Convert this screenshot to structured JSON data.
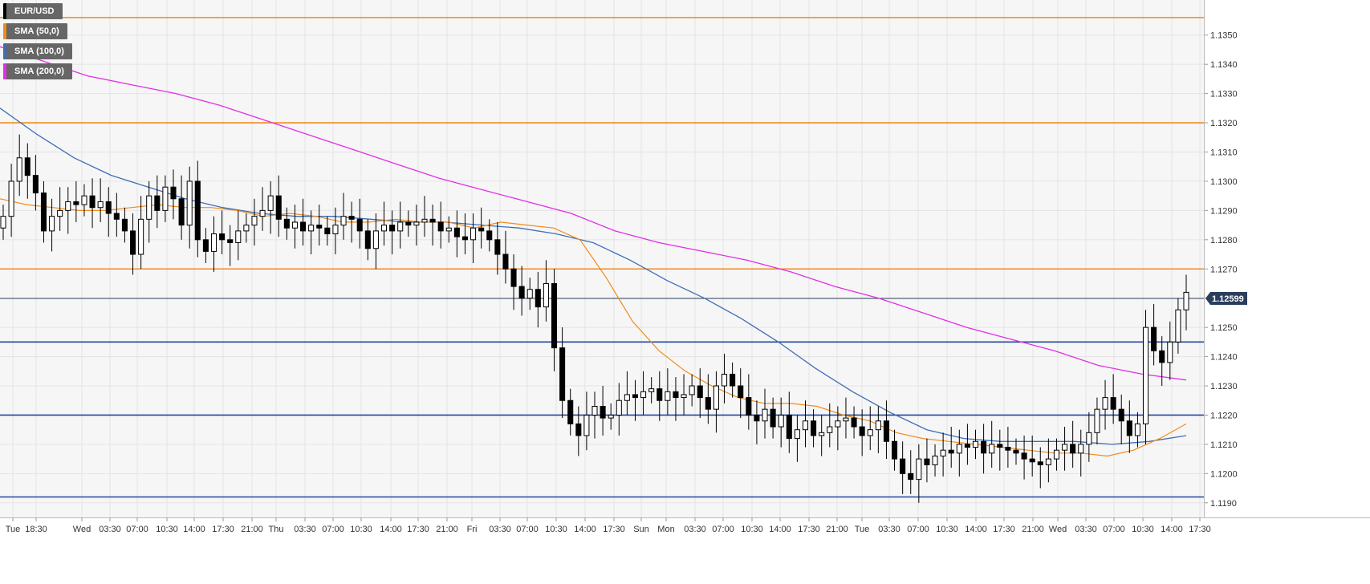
{
  "instrument": "EUR/USD",
  "legend": [
    {
      "label": "EUR/USD",
      "color": "#000000"
    },
    {
      "label": "SMA (50,0)",
      "color": "#f28a1c"
    },
    {
      "label": "SMA (100,0)",
      "color": "#3d6eb8"
    },
    {
      "label": "SMA (200,0)",
      "color": "#e22ee6"
    }
  ],
  "last_price_label": "1.12599",
  "colors": {
    "orange_level": "#f28a1c",
    "blue_level": "#23479c",
    "sma50": "#f28a1c",
    "sma100": "#3d6eb8",
    "sma200": "#e22ee6",
    "price_tag_bg": "#2a3e5c",
    "grid": "#e4e4e4",
    "plot_bg": "#f6f6f6"
  },
  "chart_data": {
    "type": "candlestick",
    "title": "",
    "xlabel": "",
    "ylabel": "",
    "ylim": [
      1.1185,
      1.1362
    ],
    "y_ticks": [
      "1.1190",
      "1.1200",
      "1.1210",
      "1.1220",
      "1.1230",
      "1.1240",
      "1.1250",
      "1.1260",
      "1.1270",
      "1.1280",
      "1.1290",
      "1.1300",
      "1.1310",
      "1.1320",
      "1.1330",
      "1.1340",
      "1.1350"
    ],
    "x_ticks": [
      "Tue",
      "18:30",
      "Wed",
      "03:30",
      "07:00",
      "10:30",
      "14:00",
      "17:30",
      "21:00",
      "Thu",
      "03:30",
      "07:00",
      "10:30",
      "14:00",
      "17:30",
      "21:00",
      "Fri",
      "03:30",
      "07:00",
      "10:30",
      "14:00",
      "17:30",
      "Sun",
      "Mon",
      "03:30",
      "07:00",
      "10:30",
      "14:00",
      "17:30",
      "21:00",
      "Tue",
      "03:30",
      "07:00",
      "10:30",
      "14:00",
      "17:30",
      "21:00",
      "Wed",
      "03:30",
      "07:00",
      "10:30",
      "14:00",
      "17:30"
    ],
    "grid": true,
    "horizontal_levels": [
      {
        "value": 1.1356,
        "color": "orange"
      },
      {
        "value": 1.132,
        "color": "orange"
      },
      {
        "value": 1.127,
        "color": "orange"
      },
      {
        "value": 1.1245,
        "color": "blue"
      },
      {
        "value": 1.122,
        "color": "blue"
      },
      {
        "value": 1.1192,
        "color": "blue"
      }
    ],
    "last_price": 1.12599,
    "series": [
      {
        "name": "EUR/USD",
        "kind": "close_path",
        "values": [
          1.1288,
          1.13,
          1.1308,
          1.1302,
          1.1296,
          1.1283,
          1.1288,
          1.129,
          1.1293,
          1.1292,
          1.1295,
          1.1291,
          1.1293,
          1.1289,
          1.1287,
          1.1283,
          1.1275,
          1.1287,
          1.1295,
          1.129,
          1.1298,
          1.1294,
          1.1285,
          1.13,
          1.128,
          1.1276,
          1.1282,
          1.128,
          1.1279,
          1.1283,
          1.1285,
          1.1288,
          1.129,
          1.1295,
          1.1287,
          1.1284,
          1.1286,
          1.1283,
          1.1285,
          1.1284,
          1.1282,
          1.1285,
          1.1288,
          1.1287,
          1.1283,
          1.1277,
          1.1283,
          1.1285,
          1.1283,
          1.1286,
          1.1285,
          1.1286,
          1.1287,
          1.1286,
          1.1283,
          1.1284,
          1.1281,
          1.128,
          1.1284,
          1.1283,
          1.128,
          1.1275,
          1.127,
          1.1264,
          1.126,
          1.1263,
          1.1257,
          1.1265,
          1.1243,
          1.1225,
          1.1217,
          1.1213,
          1.122,
          1.1223,
          1.1219,
          1.122,
          1.1225,
          1.1227,
          1.1226,
          1.1228,
          1.1229,
          1.1225,
          1.1228,
          1.1226,
          1.1227,
          1.123,
          1.1226,
          1.1222,
          1.123,
          1.1234,
          1.123,
          1.1226,
          1.122,
          1.1218,
          1.1222,
          1.1216,
          1.122,
          1.1212,
          1.1215,
          1.1218,
          1.1213,
          1.1214,
          1.1216,
          1.1218,
          1.1219,
          1.1216,
          1.1213,
          1.1215,
          1.1218,
          1.1211,
          1.1205,
          1.12,
          1.1198,
          1.1205,
          1.1203,
          1.1206,
          1.1208,
          1.1207,
          1.121,
          1.1209,
          1.1211,
          1.1207,
          1.121,
          1.1209,
          1.1208,
          1.1207,
          1.1205,
          1.1204,
          1.1203,
          1.1205,
          1.1208,
          1.121,
          1.1207,
          1.121,
          1.1214,
          1.1222,
          1.1226,
          1.1222,
          1.1218,
          1.1213,
          1.1217,
          1.125,
          1.1242,
          1.1238,
          1.1245,
          1.1256,
          1.1262
        ]
      },
      {
        "name": "SMA (50,0)",
        "kind": "line",
        "values": [
          1.1294,
          1.1292,
          1.1291,
          1.129,
          1.129,
          1.1291,
          1.1292,
          1.1291,
          1.1291,
          1.129,
          1.1288,
          1.1289,
          1.1288,
          1.1286,
          1.1286,
          1.1287,
          1.1286,
          1.1286,
          1.1284,
          1.1286,
          1.1285,
          1.1284,
          1.128,
          1.1267,
          1.1252,
          1.1242,
          1.1235,
          1.123,
          1.1226,
          1.1224,
          1.1224,
          1.1223,
          1.122,
          1.1218,
          1.1214,
          1.1212,
          1.1211,
          1.121,
          1.1209,
          1.1208,
          1.1207,
          1.1207,
          1.1206,
          1.1208,
          1.1212,
          1.1217
        ]
      },
      {
        "name": "SMA (100,0)",
        "kind": "line",
        "values": [
          1.1325,
          1.1316,
          1.1308,
          1.1302,
          1.1298,
          1.1294,
          1.1291,
          1.1289,
          1.1288,
          1.1288,
          1.1287,
          1.1286,
          1.1286,
          1.1285,
          1.1284,
          1.1282,
          1.1279,
          1.1273,
          1.1266,
          1.126,
          1.1253,
          1.1245,
          1.1236,
          1.1228,
          1.1221,
          1.1215,
          1.1212,
          1.1211,
          1.1211,
          1.1211,
          1.121,
          1.1211,
          1.1213
        ]
      },
      {
        "name": "SMA (200,0)",
        "kind": "line",
        "values": [
          1.1346,
          1.1341,
          1.1336,
          1.1333,
          1.133,
          1.1326,
          1.1321,
          1.1316,
          1.1311,
          1.1306,
          1.1301,
          1.1297,
          1.1293,
          1.1289,
          1.1283,
          1.1279,
          1.1276,
          1.1273,
          1.1269,
          1.1264,
          1.126,
          1.1255,
          1.125,
          1.1246,
          1.1242,
          1.1237,
          1.1234,
          1.1232
        ]
      }
    ]
  }
}
